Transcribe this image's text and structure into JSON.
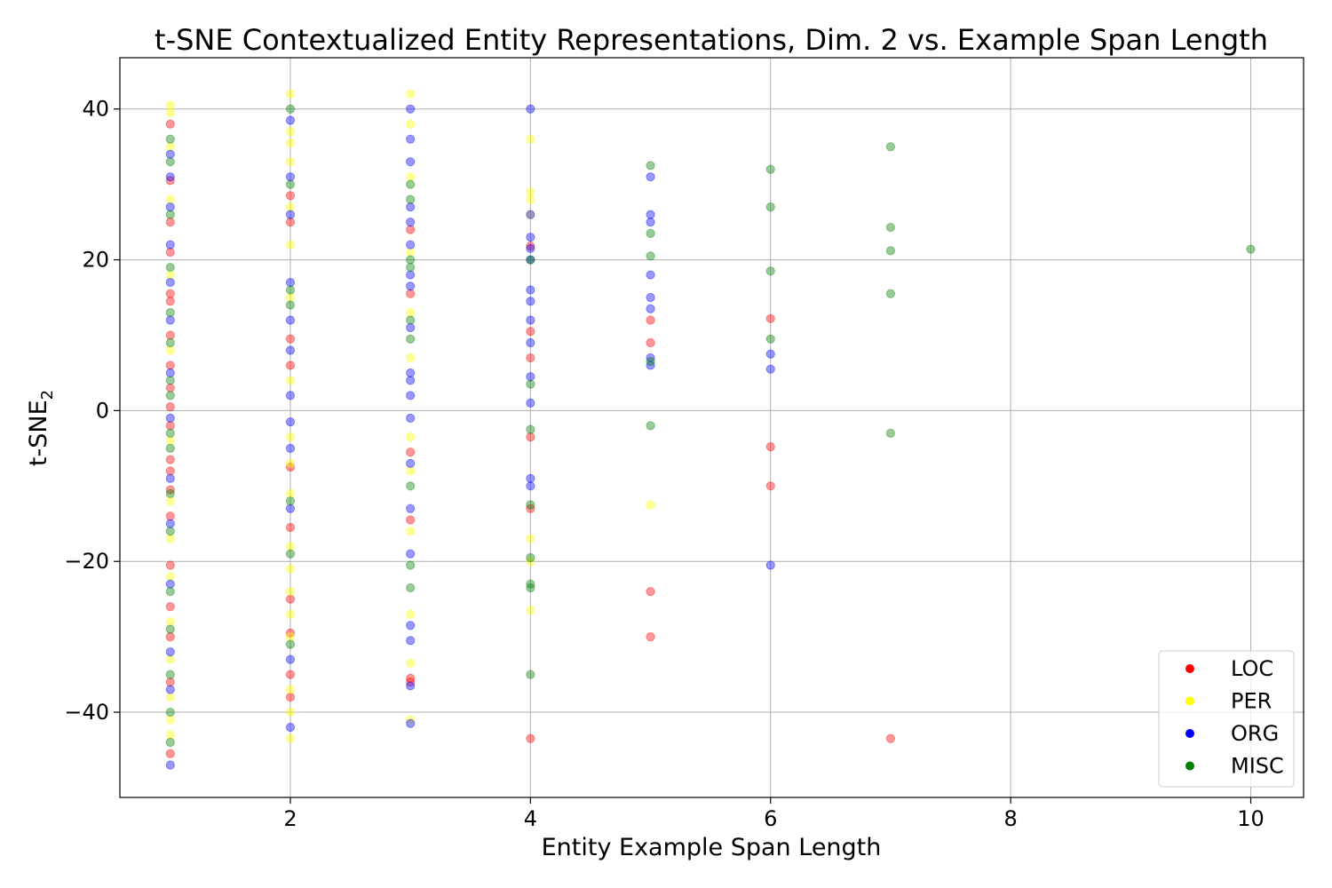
{
  "chart_data": {
    "type": "scatter",
    "title": "t-SNE Contextualized Entity Representations, Dim. 2 vs. Example Span Length",
    "xlabel": "Entity Example Span Length",
    "ylabel": "t-SNE",
    "ylabel_subscript": "2",
    "xlim": [
      0.58,
      10.44
    ],
    "ylim": [
      -51.3,
      46.8
    ],
    "xticks": [
      2,
      4,
      6,
      8,
      10
    ],
    "yticks": [
      -40,
      -20,
      0,
      20,
      40
    ],
    "ytick_labels": [
      "−40",
      "−20",
      "0",
      "20",
      "40"
    ],
    "grid": true,
    "legend_position": "bottom-right",
    "marker_alpha": 0.4,
    "series": [
      {
        "name": "LOC",
        "color": "#ff0000",
        "points": [
          [
            4,
            10.5
          ],
          [
            4,
            7
          ],
          [
            4,
            -3.5
          ],
          [
            4,
            -13
          ],
          [
            4,
            -43.5
          ],
          [
            4,
            21.8
          ],
          [
            5,
            12
          ],
          [
            5,
            9
          ],
          [
            5,
            -24
          ],
          [
            5,
            -30
          ],
          [
            6,
            12.2
          ],
          [
            6,
            -4.8
          ],
          [
            6,
            -10
          ],
          [
            7,
            -43.5
          ],
          [
            3,
            -5.5
          ],
          [
            3,
            -14.5
          ],
          [
            3,
            -35.5
          ],
          [
            3,
            -36
          ],
          [
            3,
            24
          ],
          [
            3,
            15.5
          ],
          [
            2,
            9.5
          ],
          [
            2,
            6
          ],
          [
            2,
            -7.5
          ],
          [
            2,
            -15.5
          ],
          [
            2,
            -25
          ],
          [
            2,
            -29.5
          ],
          [
            2,
            -35
          ],
          [
            2,
            -38
          ],
          [
            2,
            25
          ],
          [
            2,
            28.5
          ],
          [
            1,
            15.5
          ],
          [
            1,
            14.5
          ],
          [
            1,
            6
          ],
          [
            1,
            0.5
          ],
          [
            1,
            -6.5
          ],
          [
            1,
            -10.5
          ],
          [
            1,
            -20.5
          ],
          [
            1,
            -26
          ],
          [
            1,
            -45.5
          ],
          [
            1,
            38
          ],
          [
            1,
            30.5
          ],
          [
            1,
            25
          ],
          [
            1,
            21
          ],
          [
            1,
            10
          ],
          [
            1,
            3
          ],
          [
            1,
            -2
          ],
          [
            1,
            -8
          ],
          [
            1,
            -14
          ],
          [
            1,
            -30
          ],
          [
            1,
            -36
          ]
        ]
      },
      {
        "name": "PER",
        "color": "#ffff00",
        "points": [
          [
            4,
            36
          ],
          [
            4,
            29
          ],
          [
            4,
            28
          ],
          [
            4,
            -17
          ],
          [
            4,
            -20
          ],
          [
            4,
            -26.5
          ],
          [
            4,
            26
          ],
          [
            5,
            -12.5
          ],
          [
            3,
            42
          ],
          [
            3,
            38
          ],
          [
            3,
            31
          ],
          [
            3,
            13
          ],
          [
            3,
            7
          ],
          [
            3,
            -3.5
          ],
          [
            3,
            -8
          ],
          [
            3,
            -16
          ],
          [
            3,
            -27
          ],
          [
            3,
            -33.5
          ],
          [
            3,
            -41
          ],
          [
            3,
            21
          ],
          [
            2,
            42
          ],
          [
            2,
            37
          ],
          [
            2,
            35.5
          ],
          [
            2,
            33
          ],
          [
            2,
            27
          ],
          [
            2,
            22
          ],
          [
            2,
            15
          ],
          [
            2,
            4
          ],
          [
            2,
            -3.5
          ],
          [
            2,
            -7
          ],
          [
            2,
            -11
          ],
          [
            2,
            -18
          ],
          [
            2,
            -21
          ],
          [
            2,
            -24
          ],
          [
            2,
            -27
          ],
          [
            2,
            -30
          ],
          [
            2,
            -37
          ],
          [
            2,
            -40
          ],
          [
            2,
            -43.5
          ],
          [
            1,
            40.5
          ],
          [
            1,
            39.5
          ],
          [
            1,
            35
          ],
          [
            1,
            28
          ],
          [
            1,
            18
          ],
          [
            1,
            8
          ],
          [
            1,
            -4
          ],
          [
            1,
            -12
          ],
          [
            1,
            -17
          ],
          [
            1,
            -22
          ],
          [
            1,
            -28
          ],
          [
            1,
            -33
          ],
          [
            1,
            -38
          ],
          [
            1,
            -41
          ],
          [
            1,
            -43
          ]
        ]
      },
      {
        "name": "ORG",
        "color": "#0000ff",
        "points": [
          [
            4,
            40
          ],
          [
            4,
            26
          ],
          [
            4,
            23
          ],
          [
            4,
            21.5
          ],
          [
            4,
            16
          ],
          [
            4,
            14.5
          ],
          [
            4,
            12
          ],
          [
            4,
            9
          ],
          [
            4,
            4.5
          ],
          [
            4,
            1
          ],
          [
            4,
            -9
          ],
          [
            4,
            -10
          ],
          [
            4,
            20
          ],
          [
            5,
            31
          ],
          [
            5,
            26
          ],
          [
            5,
            25
          ],
          [
            5,
            18
          ],
          [
            5,
            15
          ],
          [
            5,
            13.5
          ],
          [
            5,
            7
          ],
          [
            5,
            6
          ],
          [
            6,
            7.5
          ],
          [
            6,
            5.5
          ],
          [
            6,
            -20.5
          ],
          [
            3,
            40
          ],
          [
            3,
            36
          ],
          [
            3,
            33
          ],
          [
            3,
            27
          ],
          [
            3,
            25
          ],
          [
            3,
            22
          ],
          [
            3,
            18
          ],
          [
            3,
            16.5
          ],
          [
            3,
            11
          ],
          [
            3,
            5
          ],
          [
            3,
            4
          ],
          [
            3,
            2
          ],
          [
            3,
            -1
          ],
          [
            3,
            -7
          ],
          [
            3,
            -13
          ],
          [
            3,
            -19
          ],
          [
            3,
            -28.5
          ],
          [
            3,
            -30.5
          ],
          [
            3,
            -36.5
          ],
          [
            3,
            -41.5
          ],
          [
            2,
            38.5
          ],
          [
            2,
            31
          ],
          [
            2,
            26
          ],
          [
            2,
            17
          ],
          [
            2,
            12
          ],
          [
            2,
            8
          ],
          [
            2,
            2
          ],
          [
            2,
            -1.5
          ],
          [
            2,
            -5
          ],
          [
            2,
            -13
          ],
          [
            2,
            -33
          ],
          [
            2,
            -42
          ],
          [
            1,
            34
          ],
          [
            1,
            31
          ],
          [
            1,
            27
          ],
          [
            1,
            22
          ],
          [
            1,
            17
          ],
          [
            1,
            12
          ],
          [
            1,
            5
          ],
          [
            1,
            -1
          ],
          [
            1,
            -9
          ],
          [
            1,
            -15
          ],
          [
            1,
            -23
          ],
          [
            1,
            -32
          ],
          [
            1,
            -37
          ],
          [
            1,
            -47
          ]
        ]
      },
      {
        "name": "MISC",
        "color": "#008000",
        "points": [
          [
            4,
            3.5
          ],
          [
            4,
            -2.5
          ],
          [
            4,
            -12.5
          ],
          [
            4,
            -19.5
          ],
          [
            4,
            -23
          ],
          [
            4,
            -23.5
          ],
          [
            4,
            -35
          ],
          [
            4,
            20
          ],
          [
            5,
            32.5
          ],
          [
            5,
            23.5
          ],
          [
            5,
            20.5
          ],
          [
            5,
            6.5
          ],
          [
            5,
            -2
          ],
          [
            6,
            32
          ],
          [
            6,
            27
          ],
          [
            6,
            18.5
          ],
          [
            6,
            9.5
          ],
          [
            7,
            35
          ],
          [
            7,
            24.3
          ],
          [
            7,
            21.2
          ],
          [
            7,
            15.5
          ],
          [
            7,
            -3
          ],
          [
            10,
            21.4
          ],
          [
            3,
            30
          ],
          [
            3,
            28
          ],
          [
            3,
            20
          ],
          [
            3,
            19
          ],
          [
            3,
            12
          ],
          [
            3,
            9.5
          ],
          [
            3,
            -10
          ],
          [
            3,
            -20.5
          ],
          [
            3,
            -23.5
          ],
          [
            2,
            40
          ],
          [
            2,
            30
          ],
          [
            2,
            16
          ],
          [
            2,
            14
          ],
          [
            2,
            -12
          ],
          [
            2,
            -19
          ],
          [
            2,
            -31
          ],
          [
            1,
            36
          ],
          [
            1,
            33
          ],
          [
            1,
            26
          ],
          [
            1,
            19
          ],
          [
            1,
            13
          ],
          [
            1,
            9
          ],
          [
            1,
            4
          ],
          [
            1,
            2
          ],
          [
            1,
            -3
          ],
          [
            1,
            -5
          ],
          [
            1,
            -11
          ],
          [
            1,
            -16
          ],
          [
            1,
            -24
          ],
          [
            1,
            -29
          ],
          [
            1,
            -35
          ],
          [
            1,
            -40
          ],
          [
            1,
            -44
          ]
        ]
      }
    ]
  }
}
